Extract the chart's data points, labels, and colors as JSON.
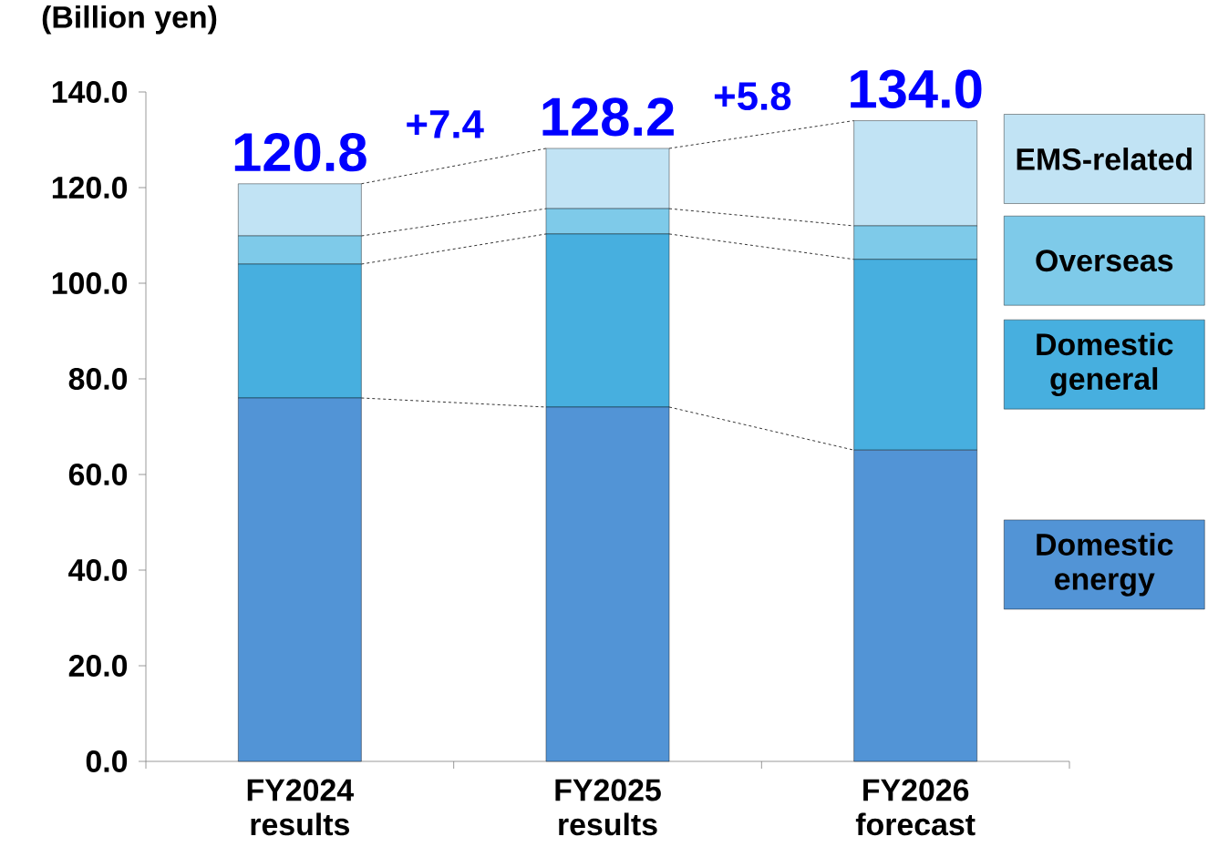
{
  "chart_data": {
    "type": "bar",
    "stacked": true,
    "ylabel": "(Billion yen)",
    "categories": [
      "FY2024 results",
      "FY2025 results",
      "FY2026 forecast"
    ],
    "series": [
      {
        "name": "Domestic energy",
        "color": "#5294d6",
        "values": [
          76.0,
          74.1,
          65.1
        ]
      },
      {
        "name": "Domestic general",
        "color": "#47afdf",
        "values": [
          28.0,
          36.2,
          39.9
        ]
      },
      {
        "name": "Overseas",
        "color": "#7ecae9",
        "values": [
          5.9,
          5.3,
          7.0
        ]
      },
      {
        "name": "EMS-related",
        "color": "#c1e3f4",
        "values": [
          10.9,
          12.6,
          22.0
        ]
      }
    ],
    "totals": [
      "120.8",
      "128.2",
      "134.0"
    ],
    "annotations": [
      "+7.4",
      "+5.8"
    ],
    "ylim": [
      0,
      140
    ],
    "yticks": [
      {
        "value": 0,
        "label": "0.0"
      },
      {
        "value": 20,
        "label": "20.0"
      },
      {
        "value": 40,
        "label": "40.0"
      },
      {
        "value": 60,
        "label": "60.0"
      },
      {
        "value": 80,
        "label": "80.0"
      },
      {
        "value": 100,
        "label": "100.0"
      },
      {
        "value": 120,
        "label": "120.0"
      },
      {
        "value": 140,
        "label": "140.0"
      }
    ],
    "legend": "right",
    "grid": false
  }
}
